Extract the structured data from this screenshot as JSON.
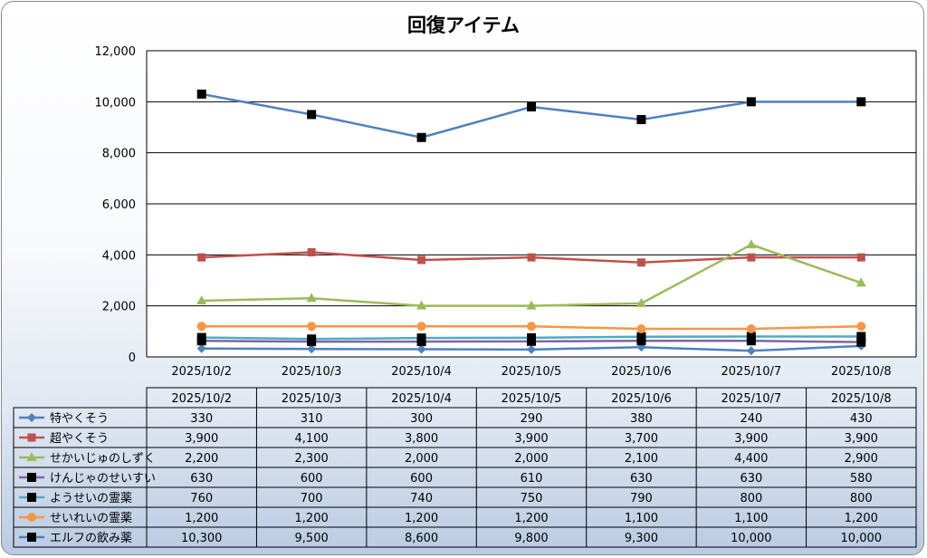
{
  "chart_data": {
    "type": "line",
    "title": "回復アイテム",
    "categories": [
      "2025/10/2",
      "2025/10/3",
      "2025/10/4",
      "2025/10/5",
      "2025/10/6",
      "2025/10/7",
      "2025/10/8"
    ],
    "ylim": [
      0,
      12000
    ],
    "yticks": [
      "0",
      "2,000",
      "4,000",
      "6,000",
      "8,000",
      "10,000",
      "12,000"
    ],
    "grid": true,
    "legend": "data-table",
    "series": [
      {
        "name": "特やくそう",
        "color": "#4f81bd",
        "marker": "diamond",
        "values": [
          330,
          310,
          300,
          290,
          380,
          240,
          430
        ],
        "labels": [
          "330",
          "310",
          "300",
          "290",
          "380",
          "240",
          "430"
        ]
      },
      {
        "name": "超やくそう",
        "color": "#c0504d",
        "marker": "square",
        "values": [
          3900,
          4100,
          3800,
          3900,
          3700,
          3900,
          3900
        ],
        "labels": [
          "3,900",
          "4,100",
          "3,800",
          "3,900",
          "3,700",
          "3,900",
          "3,900"
        ]
      },
      {
        "name": "せかいじゅのしずく",
        "color": "#9bbb59",
        "marker": "triangle",
        "values": [
          2200,
          2300,
          2000,
          2000,
          2100,
          4400,
          2900
        ],
        "labels": [
          "2,200",
          "2,300",
          "2,000",
          "2,000",
          "2,100",
          "4,400",
          "2,900"
        ]
      },
      {
        "name": "けんじゃのせいすい",
        "color": "#8064a2",
        "marker": "square-black",
        "values": [
          630,
          600,
          600,
          610,
          630,
          630,
          580
        ],
        "labels": [
          "630",
          "600",
          "600",
          "610",
          "630",
          "630",
          "580"
        ]
      },
      {
        "name": "ようせいの霊薬",
        "color": "#4bacc6",
        "marker": "square-black",
        "values": [
          760,
          700,
          740,
          750,
          790,
          800,
          800
        ],
        "labels": [
          "760",
          "700",
          "740",
          "750",
          "790",
          "800",
          "800"
        ]
      },
      {
        "name": "せいれいの霊薬",
        "color": "#f79646",
        "marker": "circle",
        "values": [
          1200,
          1200,
          1200,
          1200,
          1100,
          1100,
          1200
        ],
        "labels": [
          "1,200",
          "1,200",
          "1,200",
          "1,200",
          "1,100",
          "1,100",
          "1,200"
        ]
      },
      {
        "name": "エルフの飲み薬",
        "color": "#4f81bd",
        "marker": "square-black",
        "values": [
          10300,
          9500,
          8600,
          9800,
          9300,
          10000,
          10000
        ],
        "labels": [
          "10,300",
          "9,500",
          "8,600",
          "9,800",
          "9,300",
          "10,000",
          "10,000"
        ]
      }
    ]
  }
}
